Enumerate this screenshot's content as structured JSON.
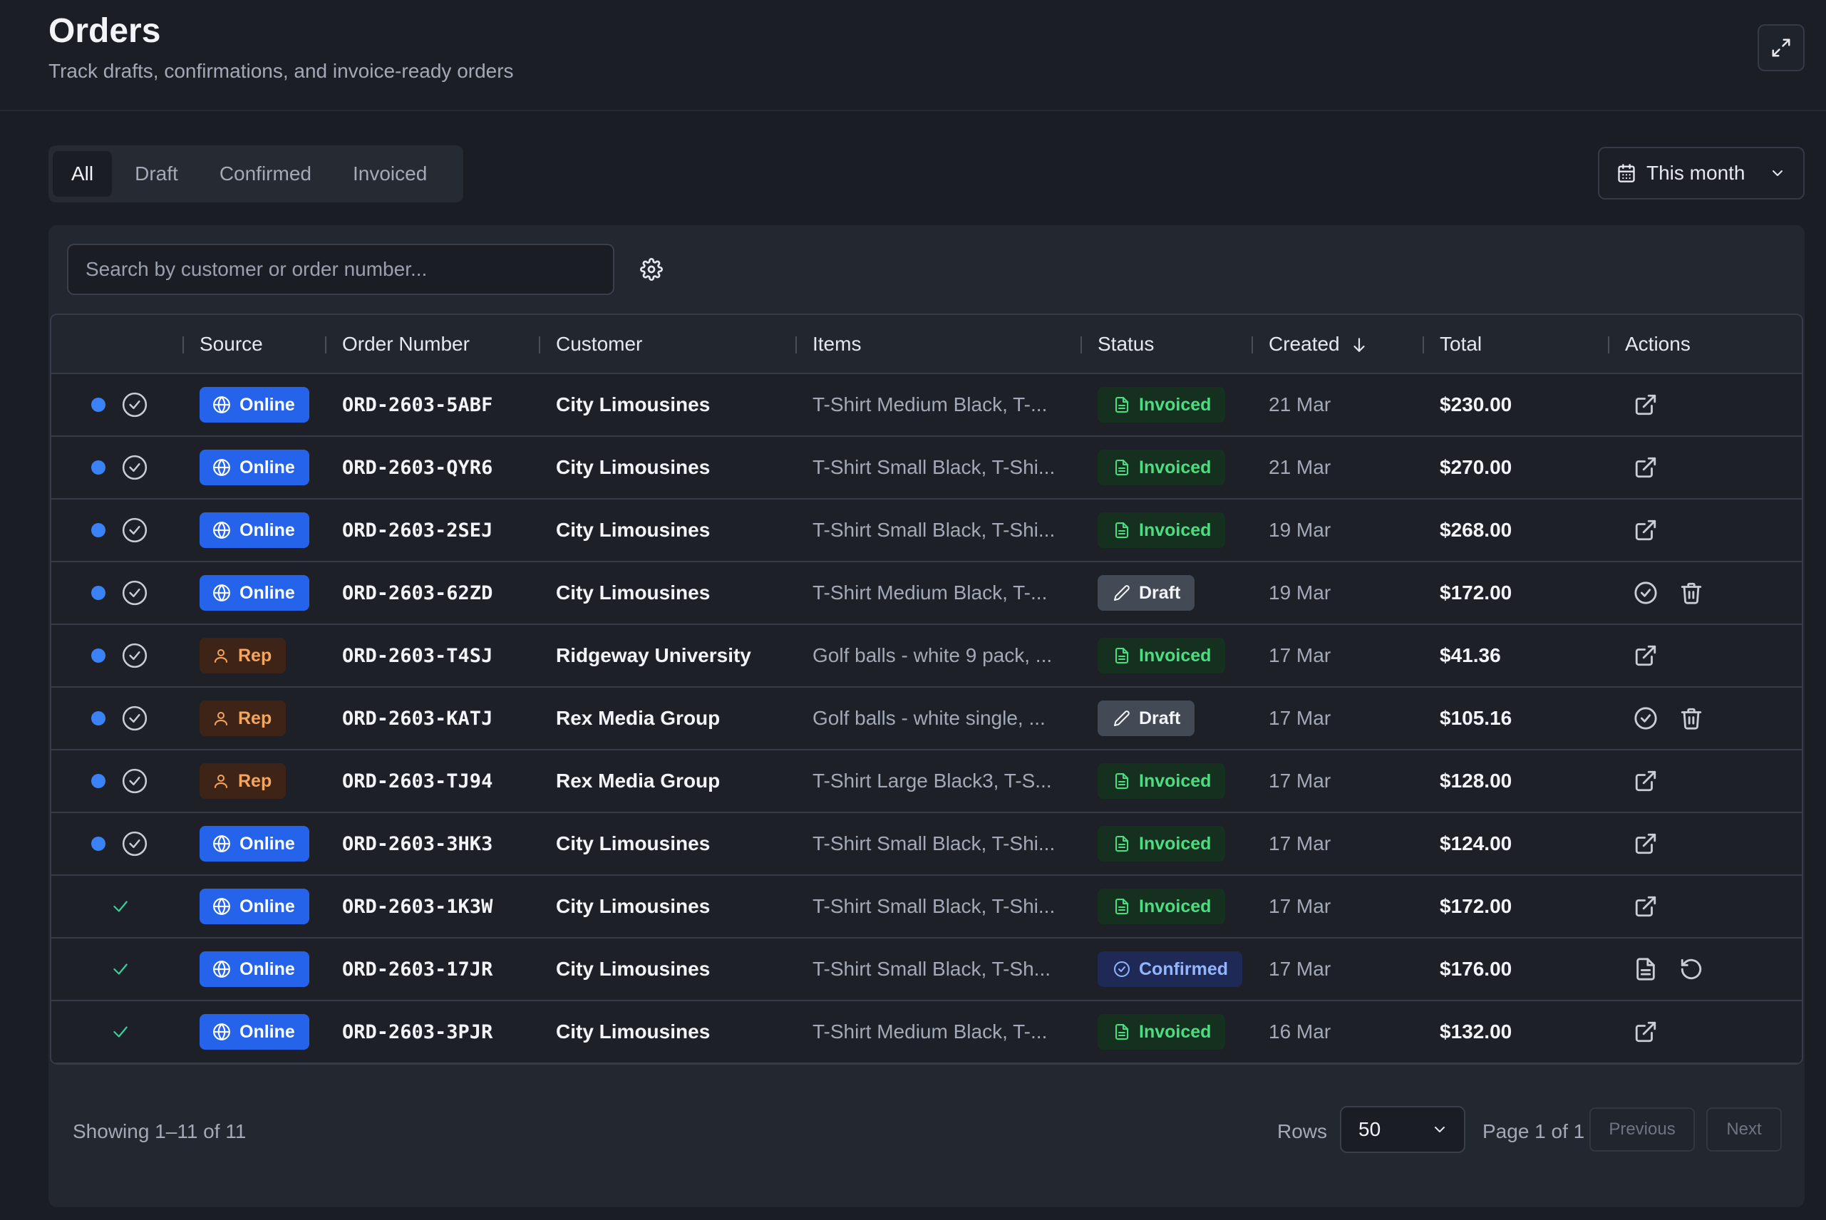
{
  "header": {
    "title": "Orders",
    "subtitle": "Track drafts, confirmations, and invoice-ready orders",
    "expand_icon": "expand-icon"
  },
  "tabs": [
    {
      "label": "All",
      "active": true
    },
    {
      "label": "Draft",
      "active": false
    },
    {
      "label": "Confirmed",
      "active": false
    },
    {
      "label": "Invoiced",
      "active": false
    }
  ],
  "date_filter": {
    "label": "This month",
    "icon": "calendar-icon"
  },
  "search": {
    "placeholder": "Search by customer or order number..."
  },
  "table": {
    "columns": {
      "source": "Source",
      "order_number": "Order Number",
      "customer": "Customer",
      "items": "Items",
      "status": "Status",
      "created": "Created",
      "total": "Total",
      "actions": "Actions"
    },
    "sort": {
      "column": "Created",
      "direction": "desc"
    },
    "rows": [
      {
        "selected": true,
        "source": "Online",
        "order": "ORD-2603-5ABF",
        "customer": "City Limousines",
        "items": "T-Shirt Medium Black, T-...",
        "status": "Invoiced",
        "created": "21 Mar",
        "total": "$230.00",
        "actions": [
          "open-external"
        ]
      },
      {
        "selected": true,
        "source": "Online",
        "order": "ORD-2603-QYR6",
        "customer": "City Limousines",
        "items": "T-Shirt Small Black, T-Shi...",
        "status": "Invoiced",
        "created": "21 Mar",
        "total": "$270.00",
        "actions": [
          "open-external"
        ]
      },
      {
        "selected": true,
        "source": "Online",
        "order": "ORD-2603-2SEJ",
        "customer": "City Limousines",
        "items": "T-Shirt Small Black, T-Shi...",
        "status": "Invoiced",
        "created": "19 Mar",
        "total": "$268.00",
        "actions": [
          "open-external"
        ]
      },
      {
        "selected": true,
        "source": "Online",
        "order": "ORD-2603-62ZD",
        "customer": "City Limousines",
        "items": "T-Shirt Medium Black, T-...",
        "status": "Draft",
        "created": "19 Mar",
        "total": "$172.00",
        "actions": [
          "confirm",
          "delete"
        ]
      },
      {
        "selected": true,
        "source": "Rep",
        "order": "ORD-2603-T4SJ",
        "customer": "Ridgeway University",
        "items": "Golf balls - white 9 pack, ...",
        "status": "Invoiced",
        "created": "17 Mar",
        "total": "$41.36",
        "actions": [
          "open-external"
        ]
      },
      {
        "selected": true,
        "source": "Rep",
        "order": "ORD-2603-KATJ",
        "customer": "Rex Media Group",
        "items": "Golf balls - white single, ...",
        "status": "Draft",
        "created": "17 Mar",
        "total": "$105.16",
        "actions": [
          "confirm",
          "delete"
        ]
      },
      {
        "selected": true,
        "source": "Rep",
        "order": "ORD-2603-TJ94",
        "customer": "Rex Media Group",
        "items": "T-Shirt Large Black3, T-S...",
        "status": "Invoiced",
        "created": "17 Mar",
        "total": "$128.00",
        "actions": [
          "open-external"
        ]
      },
      {
        "selected": true,
        "source": "Online",
        "order": "ORD-2603-3HK3",
        "customer": "City Limousines",
        "items": "T-Shirt Small Black, T-Shi...",
        "status": "Invoiced",
        "created": "17 Mar",
        "total": "$124.00",
        "actions": [
          "open-external"
        ]
      },
      {
        "selected": false,
        "source": "Online",
        "order": "ORD-2603-1K3W",
        "customer": "City Limousines",
        "items": "T-Shirt Small Black, T-Shi...",
        "status": "Invoiced",
        "created": "17 Mar",
        "total": "$172.00",
        "actions": [
          "open-external"
        ]
      },
      {
        "selected": false,
        "source": "Online",
        "order": "ORD-2603-17JR",
        "customer": "City Limousines",
        "items": "T-Shirt Small Black, T-Sh...",
        "status": "Confirmed",
        "created": "17 Mar",
        "total": "$176.00",
        "actions": [
          "invoice",
          "revert"
        ]
      },
      {
        "selected": false,
        "source": "Online",
        "order": "ORD-2603-3PJR",
        "customer": "City Limousines",
        "items": "T-Shirt Medium Black, T-...",
        "status": "Invoiced",
        "created": "16 Mar",
        "total": "$132.00",
        "actions": [
          "open-external"
        ]
      }
    ]
  },
  "footer": {
    "showing": "Showing 1–11 of 11",
    "rows_label": "Rows",
    "rows_value": "50",
    "page_info": "Page 1 of 1",
    "prev_label": "Previous",
    "next_label": "Next"
  },
  "colors": {
    "background": "#1a1d24",
    "panel": "#23272f",
    "accent": "#2563eb",
    "invoiced": "#4ade80",
    "rep": "#f5a55c",
    "confirmed": "#93b4ff"
  }
}
